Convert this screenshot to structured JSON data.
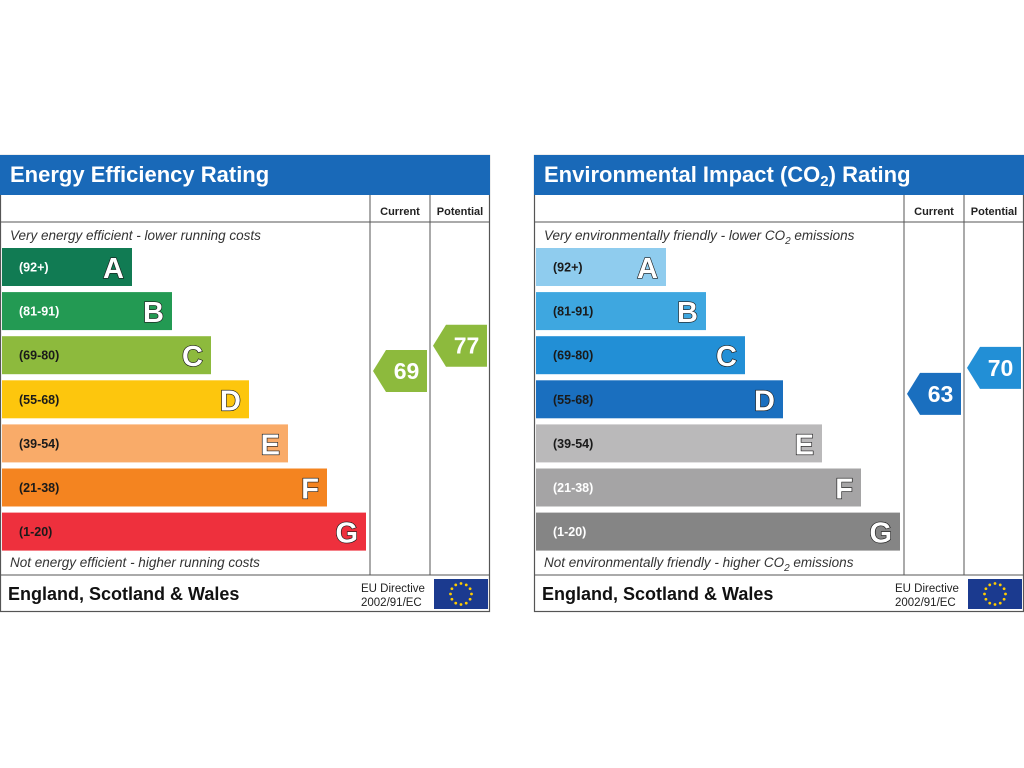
{
  "chart_data": [
    {
      "type": "bar",
      "title": "Energy Efficiency Rating",
      "column_headers": [
        "Current",
        "Potential"
      ],
      "top_note": "Very energy efficient - lower running costs",
      "bottom_note": "Not energy efficient - higher running costs",
      "bands": [
        {
          "letter": "A",
          "range": "(92+)",
          "color": "#117b53",
          "text_color": "#ffffff"
        },
        {
          "letter": "B",
          "range": "(81-91)",
          "color": "#239a53",
          "text_color": "#ffffff"
        },
        {
          "letter": "C",
          "range": "(69-80)",
          "color": "#8dba3d",
          "text_color": "#1a1a1a"
        },
        {
          "letter": "D",
          "range": "(55-68)",
          "color": "#fdc60d",
          "text_color": "#1a1a1a"
        },
        {
          "letter": "E",
          "range": "(39-54)",
          "color": "#f9ab69",
          "text_color": "#1a1a1a"
        },
        {
          "letter": "F",
          "range": "(21-38)",
          "color": "#f48420",
          "text_color": "#1a1a1a"
        },
        {
          "letter": "G",
          "range": "(1-20)",
          "color": "#ee303d",
          "text_color": "#1a1a1a"
        }
      ],
      "band_scores": [
        100,
        91,
        80,
        68,
        54,
        38,
        20
      ],
      "current": {
        "value": 69,
        "color": "#8dba3d"
      },
      "potential": {
        "value": 77,
        "color": "#8dba3d"
      },
      "footer": {
        "region": "England, Scotland & Wales",
        "directive_line1": "EU Directive",
        "directive_line2": "2002/91/EC"
      }
    },
    {
      "type": "bar",
      "title": "Environmental Impact (CO2) Rating",
      "title_parts": [
        "Environmental Impact (CO",
        "2",
        ") Rating"
      ],
      "column_headers": [
        "Current",
        "Potential"
      ],
      "top_note": "Very environmentally friendly - lower CO2 emissions",
      "top_note_parts": [
        "Very environmentally friendly - lower CO",
        "2",
        " emissions"
      ],
      "bottom_note": "Not environmentally friendly - higher CO2 emissions",
      "bottom_note_parts": [
        "Not environmentally friendly - higher CO",
        "2",
        " emissions"
      ],
      "bands": [
        {
          "letter": "A",
          "range": "(92+)",
          "color": "#8fccee",
          "text_color": "#1a1a1a"
        },
        {
          "letter": "B",
          "range": "(81-91)",
          "color": "#3ea7e0",
          "text_color": "#1a1a1a"
        },
        {
          "letter": "C",
          "range": "(69-80)",
          "color": "#228fd6",
          "text_color": "#1a1a1a"
        },
        {
          "letter": "D",
          "range": "(55-68)",
          "color": "#1a6fbf",
          "text_color": "#1a1a1a"
        },
        {
          "letter": "E",
          "range": "(39-54)",
          "color": "#bab9ba",
          "text_color": "#1a1a1a"
        },
        {
          "letter": "F",
          "range": "(21-38)",
          "color": "#a5a4a5",
          "text_color": "#ffffff"
        },
        {
          "letter": "G",
          "range": "(1-20)",
          "color": "#858585",
          "text_color": "#ffffff"
        }
      ],
      "band_scores": [
        100,
        91,
        80,
        68,
        54,
        38,
        20
      ],
      "current": {
        "value": 63,
        "color": "#1a6fbf"
      },
      "potential": {
        "value": 70,
        "color": "#228fd6"
      },
      "footer": {
        "region": "England, Scotland & Wales",
        "directive_line1": "EU Directive",
        "directive_line2": "2002/91/EC"
      }
    }
  ]
}
